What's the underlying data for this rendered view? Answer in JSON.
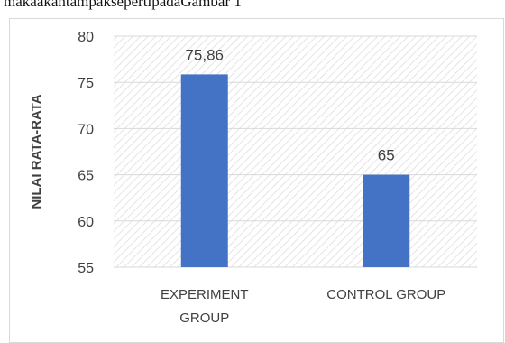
{
  "page": {
    "caption_fragment": "makaakantampaksepertipadaGambar 1"
  },
  "chart_data": {
    "type": "bar",
    "title": "",
    "xlabel": "",
    "ylabel": "NILAI RATA-RATA",
    "categories": [
      "EXPERIMENT GROUP",
      "CONTROL GROUP"
    ],
    "category_lines": [
      [
        "EXPERIMENT",
        "GROUP"
      ],
      [
        "CONTROL GROUP"
      ]
    ],
    "values": [
      75.86,
      65
    ],
    "data_labels": [
      "75,86",
      "65"
    ],
    "ylim": [
      55,
      80
    ],
    "yticks": [
      55,
      60,
      65,
      70,
      75,
      80
    ],
    "grid": true,
    "legend": "none",
    "colors": {
      "bar": "#4472C4",
      "grid": "#d9d9d9",
      "text": "#404040"
    }
  }
}
